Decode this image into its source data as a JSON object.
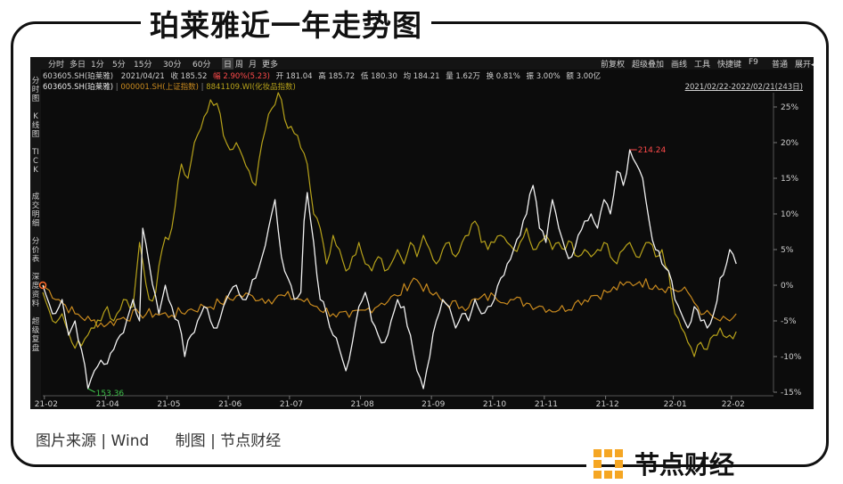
{
  "title": "珀莱雅近一年走势图",
  "footer": {
    "source": "图片来源 | Wind",
    "made_by": "制图 | 节点财经"
  },
  "brand": {
    "name": "节点财经"
  },
  "toolbar": {
    "left": [
      "分时",
      "多日",
      "1分",
      "5分",
      "15分",
      "30分",
      "60分",
      "日",
      "周",
      "月",
      "更多"
    ],
    "active": "日",
    "right": [
      "前复权",
      "超级叠加",
      "画线",
      "工具",
      "快捷键",
      "F9",
      "普通",
      "展开◂"
    ]
  },
  "info_line": {
    "code": "603605.SH(珀莱雅)",
    "date": "2021/04/21",
    "close": "收 185.52",
    "change": "幅 2.90%(5.23)",
    "open": "开 181.04",
    "high": "高 185.72",
    "low": "低 180.30",
    "avg": "均 184.21",
    "volume": "量 1.62万",
    "turnover": "换 0.81%",
    "amplitude": "振 3.00%",
    "amount": "额 3.00亿"
  },
  "overlay_line": {
    "s1": "603605.SH(珀莱雅)",
    "s2": "000001.SH(上证指数)",
    "s3": "8841109.WI(化妆品指数)",
    "range": "2021/02/22-2022/02/21(243日)"
  },
  "sidebar": [
    "分时图",
    "K线图",
    "TICK",
    "成交明细",
    "分价表",
    "深度资料",
    "超级复盘"
  ],
  "colors": {
    "plr": "#f2f2f2",
    "sh": "#c98a1e",
    "cos": "#b7a21a",
    "bg": "#0c0c0c",
    "grid": "#2a2a2a",
    "high": "#ff4a4a",
    "low": "#3ec24a"
  },
  "chart_data": {
    "type": "line",
    "ylabel": "",
    "y_unit": "%",
    "ylim": [
      -15,
      27
    ],
    "yticks": [
      25,
      20,
      15,
      10,
      5,
      0,
      -5,
      -10,
      -15
    ],
    "ytick_labels": [
      "25%",
      "20%",
      "15%",
      "10%",
      "5%",
      "0%",
      "-5%",
      "-10%",
      "-15%"
    ],
    "xticks": [
      "21-02",
      "21-04",
      "21-05",
      "21-06",
      "21-07",
      "21-08",
      "21-09",
      "21-10",
      "21-11",
      "21-12",
      "22-01",
      "22-02"
    ],
    "xtick_pos": [
      0.5,
      19.5,
      38.5,
      57.5,
      76.5,
      98.5,
      120.5,
      139.5,
      155.5,
      174.5,
      195.5,
      213.5
    ],
    "n_points": 227,
    "annotations": [
      {
        "label": "214.24",
        "series": "603605.SH(珀莱雅)",
        "type": "high"
      },
      {
        "label": "153.36",
        "series": "603605.SH(珀莱雅)",
        "type": "low"
      }
    ],
    "series": [
      {
        "name": "603605.SH(珀莱雅)",
        "color": "#f2f2f2",
        "anchors": [
          [
            0,
            0
          ],
          [
            3,
            -4
          ],
          [
            6,
            -2
          ],
          [
            8,
            -7
          ],
          [
            10,
            -5
          ],
          [
            12,
            -9
          ],
          [
            14,
            -14.5
          ],
          [
            16,
            -12
          ],
          [
            18,
            -10.5
          ],
          [
            20,
            -11
          ],
          [
            22,
            -9
          ],
          [
            24,
            -7
          ],
          [
            26,
            -5
          ],
          [
            28,
            -2
          ],
          [
            30,
            -5
          ],
          [
            31,
            8
          ],
          [
            33,
            3
          ],
          [
            36,
            -4
          ],
          [
            38,
            0
          ],
          [
            40,
            -3
          ],
          [
            42,
            -5
          ],
          [
            44,
            -10
          ],
          [
            46,
            -7
          ],
          [
            48,
            -5
          ],
          [
            50,
            -3
          ],
          [
            52,
            -5
          ],
          [
            54,
            -6
          ],
          [
            56,
            -3
          ],
          [
            58,
            -1
          ],
          [
            60,
            0
          ],
          [
            62,
            -2
          ],
          [
            64,
            -1
          ],
          [
            66,
            1
          ],
          [
            68,
            4
          ],
          [
            70,
            8
          ],
          [
            72,
            12
          ],
          [
            74,
            4
          ],
          [
            76,
            1
          ],
          [
            78,
            -2
          ],
          [
            80,
            -1
          ],
          [
            81,
            9
          ],
          [
            82,
            13
          ],
          [
            84,
            6
          ],
          [
            86,
            -2
          ],
          [
            88,
            -4
          ],
          [
            90,
            -7
          ],
          [
            92,
            -9
          ],
          [
            94,
            -12
          ],
          [
            96,
            -8
          ],
          [
            98,
            -3
          ],
          [
            100,
            -1
          ],
          [
            102,
            -5
          ],
          [
            104,
            -7
          ],
          [
            106,
            -8
          ],
          [
            108,
            -5
          ],
          [
            110,
            -2
          ],
          [
            112,
            -3
          ],
          [
            114,
            -7
          ],
          [
            116,
            -12
          ],
          [
            118,
            -14.5
          ],
          [
            120,
            -10
          ],
          [
            122,
            -5
          ],
          [
            124,
            -2
          ],
          [
            126,
            -3
          ],
          [
            128,
            -6
          ],
          [
            130,
            -4
          ],
          [
            132,
            -5
          ],
          [
            134,
            -2
          ],
          [
            136,
            -4
          ],
          [
            138,
            -3
          ],
          [
            140,
            -2
          ],
          [
            142,
            1
          ],
          [
            144,
            3
          ],
          [
            146,
            5
          ],
          [
            148,
            7
          ],
          [
            150,
            10
          ],
          [
            152,
            14
          ],
          [
            154,
            8
          ],
          [
            156,
            6
          ],
          [
            158,
            12
          ],
          [
            160,
            8
          ],
          [
            162,
            5
          ],
          [
            164,
            4
          ],
          [
            166,
            7
          ],
          [
            168,
            9
          ],
          [
            170,
            10
          ],
          [
            172,
            8
          ],
          [
            174,
            12
          ],
          [
            176,
            10
          ],
          [
            178,
            16
          ],
          [
            180,
            14
          ],
          [
            182,
            19
          ],
          [
            184,
            17
          ],
          [
            186,
            15
          ],
          [
            188,
            9
          ],
          [
            190,
            5
          ],
          [
            192,
            3
          ],
          [
            194,
            2
          ],
          [
            196,
            -2
          ],
          [
            198,
            -4
          ],
          [
            200,
            -6
          ],
          [
            202,
            -3
          ],
          [
            204,
            -5
          ],
          [
            206,
            -6
          ],
          [
            208,
            -4
          ],
          [
            210,
            1
          ],
          [
            212,
            3
          ],
          [
            213,
            5
          ],
          [
            215,
            3
          ]
        ]
      },
      {
        "name": "000001.SH(上证指数)",
        "color": "#c98a1e",
        "anchors": [
          [
            0,
            0
          ],
          [
            5,
            -2
          ],
          [
            10,
            -4
          ],
          [
            15,
            -5
          ],
          [
            20,
            -5.5
          ],
          [
            25,
            -4.5
          ],
          [
            30,
            -4
          ],
          [
            35,
            -4
          ],
          [
            40,
            -4.2
          ],
          [
            45,
            -3.5
          ],
          [
            50,
            -3
          ],
          [
            55,
            -2.5
          ],
          [
            60,
            -1.5
          ],
          [
            65,
            -1.5
          ],
          [
            70,
            -2
          ],
          [
            75,
            -1.5
          ],
          [
            80,
            -2
          ],
          [
            85,
            -3
          ],
          [
            90,
            -4
          ],
          [
            95,
            -4.5
          ],
          [
            100,
            -3.5
          ],
          [
            105,
            -2.5
          ],
          [
            110,
            -1.5
          ],
          [
            115,
            1
          ],
          [
            120,
            -1
          ],
          [
            125,
            -2.5
          ],
          [
            130,
            -3
          ],
          [
            135,
            -2
          ],
          [
            140,
            -1.5
          ],
          [
            145,
            -2
          ],
          [
            150,
            -2.5
          ],
          [
            155,
            -3
          ],
          [
            160,
            -3.5
          ],
          [
            165,
            -2.5
          ],
          [
            170,
            -1.5
          ],
          [
            175,
            -1
          ],
          [
            180,
            0
          ],
          [
            185,
            0.5
          ],
          [
            190,
            0
          ],
          [
            195,
            -0.5
          ],
          [
            200,
            -1
          ],
          [
            203,
            -3
          ],
          [
            205,
            -4
          ],
          [
            208,
            -4.5
          ],
          [
            210,
            -5
          ],
          [
            213,
            -5
          ],
          [
            215,
            -4
          ]
        ]
      },
      {
        "name": "8841109.WI(化妆品指数)",
        "color": "#b7a21a",
        "anchors": [
          [
            0,
            -1
          ],
          [
            3,
            -5
          ],
          [
            6,
            -4
          ],
          [
            9,
            -8
          ],
          [
            12,
            -8.5
          ],
          [
            15,
            -6
          ],
          [
            18,
            -5
          ],
          [
            20,
            -3
          ],
          [
            22,
            -5
          ],
          [
            25,
            -2
          ],
          [
            28,
            -3
          ],
          [
            30,
            6
          ],
          [
            33,
            -2
          ],
          [
            35,
            -1
          ],
          [
            37,
            5
          ],
          [
            40,
            8
          ],
          [
            43,
            17
          ],
          [
            45,
            15
          ],
          [
            47,
            20
          ],
          [
            49,
            22
          ],
          [
            52,
            26
          ],
          [
            54,
            25.5
          ],
          [
            56,
            21
          ],
          [
            58,
            19
          ],
          [
            60,
            20
          ],
          [
            62,
            18
          ],
          [
            64,
            16
          ],
          [
            66,
            14
          ],
          [
            68,
            20
          ],
          [
            70,
            24
          ],
          [
            73,
            27
          ],
          [
            76,
            22
          ],
          [
            79,
            21
          ],
          [
            82,
            17
          ],
          [
            84,
            10
          ],
          [
            86,
            8
          ],
          [
            88,
            3
          ],
          [
            90,
            7
          ],
          [
            92,
            5
          ],
          [
            94,
            2
          ],
          [
            96,
            4
          ],
          [
            98,
            6
          ],
          [
            100,
            3
          ],
          [
            102,
            2
          ],
          [
            104,
            4
          ],
          [
            106,
            2
          ],
          [
            108,
            3
          ],
          [
            110,
            5
          ],
          [
            112,
            3
          ],
          [
            114,
            6
          ],
          [
            116,
            4
          ],
          [
            118,
            7
          ],
          [
            120,
            5
          ],
          [
            122,
            3
          ],
          [
            124,
            5
          ],
          [
            126,
            6
          ],
          [
            128,
            4
          ],
          [
            130,
            6
          ],
          [
            132,
            7
          ],
          [
            134,
            9
          ],
          [
            136,
            6
          ],
          [
            138,
            5
          ],
          [
            140,
            6
          ],
          [
            142,
            7
          ],
          [
            144,
            6
          ],
          [
            146,
            5
          ],
          [
            148,
            6
          ],
          [
            150,
            8
          ],
          [
            152,
            5
          ],
          [
            154,
            6
          ],
          [
            156,
            7
          ],
          [
            158,
            5
          ],
          [
            160,
            6
          ],
          [
            162,
            5
          ],
          [
            164,
            6
          ],
          [
            166,
            4
          ],
          [
            168,
            5
          ],
          [
            170,
            4
          ],
          [
            172,
            5
          ],
          [
            174,
            6
          ],
          [
            176,
            4
          ],
          [
            178,
            3
          ],
          [
            180,
            5
          ],
          [
            182,
            6
          ],
          [
            184,
            4
          ],
          [
            186,
            5
          ],
          [
            188,
            6
          ],
          [
            190,
            4
          ],
          [
            192,
            5
          ],
          [
            194,
            2
          ],
          [
            196,
            -4
          ],
          [
            198,
            -6
          ],
          [
            200,
            -8
          ],
          [
            202,
            -10
          ],
          [
            204,
            -8
          ],
          [
            206,
            -9
          ],
          [
            208,
            -7
          ],
          [
            210,
            -6
          ],
          [
            213,
            -7
          ],
          [
            215,
            -6.5
          ]
        ]
      }
    ]
  }
}
